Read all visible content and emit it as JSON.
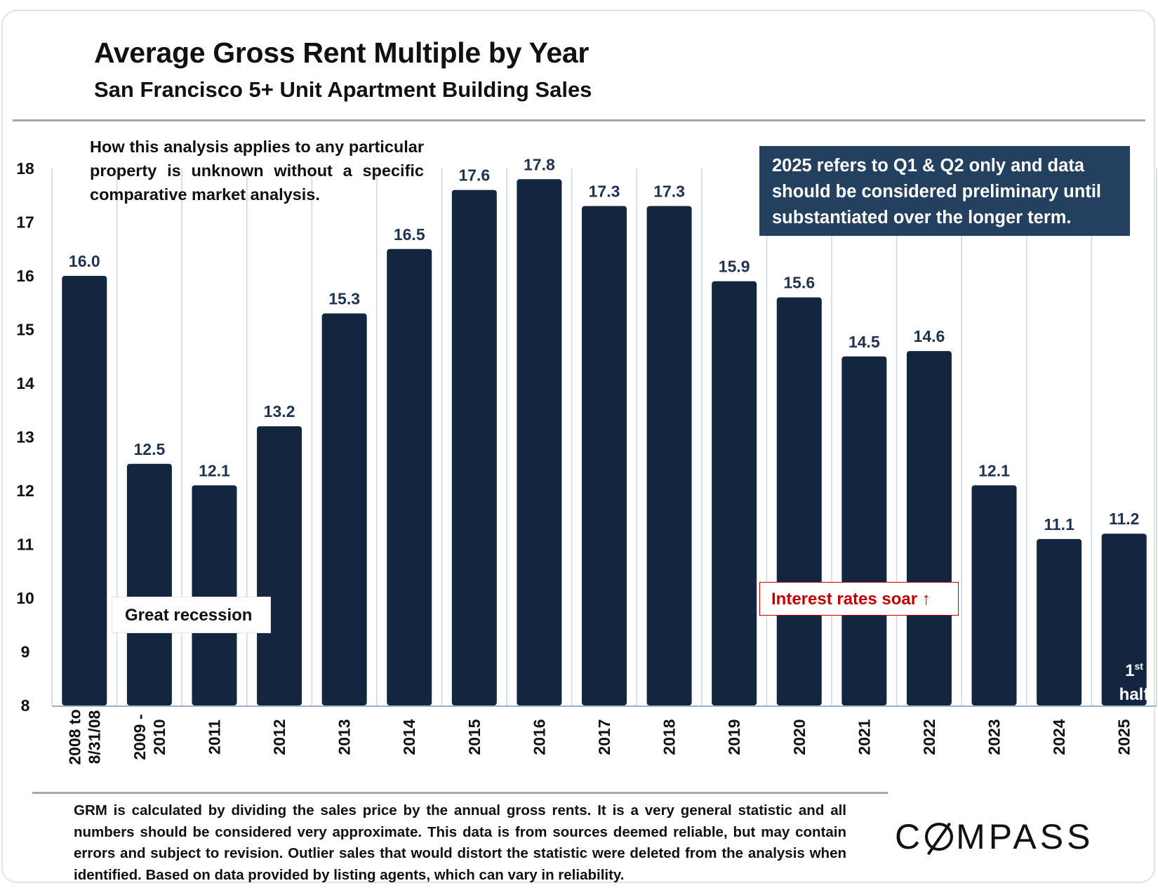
{
  "header": {
    "title": "Average Gross Rent Multiple by Year",
    "subtitle": "San Francisco 5+ Unit Apartment Building Sales"
  },
  "note": "How this analysis applies to any particular property is unknown without a specific comparative market analysis.",
  "callout": "2025 refers to Q1 & Q2 only and data should be considered preliminary until substantiated over the longer term.",
  "annotations": {
    "recession": "Great recession",
    "rates": "Interest rates soar ↑",
    "half_line1": "1",
    "half_sup": "st",
    "half_line2": "half"
  },
  "footnote": "GRM is calculated by dividing the sales price by the annual gross rents. It is a very general statistic and all numbers should be considered very approximate. This data is from sources deemed reliable, but may contain errors and subject to revision. Outlier sales that would distort the statistic were deleted from the analysis when identified. Based on data provided by listing agents, which can vary in reliability.",
  "brand": {
    "logo_left": "C",
    "logo_right": "MPASS"
  },
  "colors": {
    "bar": "#13253f",
    "grid": "#c9d7e6",
    "callout": "#23405f",
    "rates": "#c00000"
  },
  "chart_data": {
    "type": "bar",
    "categories": [
      [
        "2008 to",
        "8/31/08"
      ],
      [
        "2009 -",
        "2010"
      ],
      [
        "2011"
      ],
      [
        "2012"
      ],
      [
        "2013"
      ],
      [
        "2014"
      ],
      [
        "2015"
      ],
      [
        "2016"
      ],
      [
        "2017"
      ],
      [
        "2018"
      ],
      [
        "2019"
      ],
      [
        "2020"
      ],
      [
        "2021"
      ],
      [
        "2022"
      ],
      [
        "2023"
      ],
      [
        "2024"
      ],
      [
        "2025"
      ]
    ],
    "values": [
      16.0,
      12.5,
      12.1,
      13.2,
      15.3,
      16.5,
      17.6,
      17.8,
      17.3,
      17.3,
      15.9,
      15.6,
      14.5,
      14.6,
      12.1,
      11.1,
      11.2
    ],
    "labels": [
      "16.0",
      "12.5",
      "12.1",
      "13.2",
      "15.3",
      "16.5",
      "17.6",
      "17.8",
      "17.3",
      "17.3",
      "15.9",
      "15.6",
      "14.5",
      "14.6",
      "12.1",
      "11.1",
      "11.2"
    ],
    "yticks": [
      "8",
      "9",
      "10",
      "11",
      "12",
      "13",
      "14",
      "15",
      "16",
      "17",
      "18"
    ],
    "ylim": [
      8,
      18
    ],
    "title": "",
    "xlabel": "",
    "ylabel": "",
    "grid": "vertical"
  }
}
